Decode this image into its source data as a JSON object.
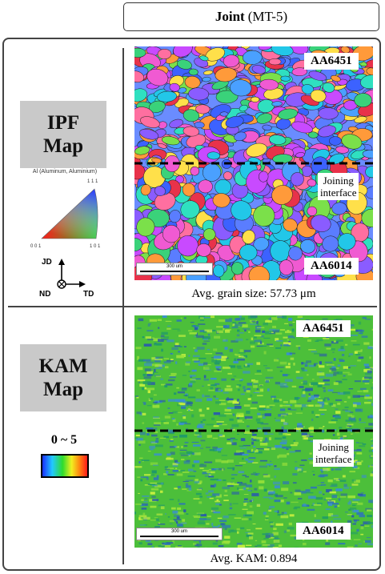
{
  "header": {
    "bold": "Joint",
    "rest": "(MT-5)"
  },
  "ipf": {
    "label_line1": "IPF",
    "label_line2": "Map",
    "legend_title": "Al (Aluminum, Aluminium)",
    "triangle_labels": {
      "top": "1 1 1",
      "left": "0 0 1",
      "right": "1 0 1"
    },
    "axes": {
      "jd": "JD",
      "nd": "ND",
      "td": "TD"
    },
    "top_alloy": "AA6451",
    "bottom_alloy": "AA6014",
    "interface_line1": "Joining",
    "interface_line2": "interface",
    "scale": "300 um",
    "caption": "Avg. grain size: 57.73 μm"
  },
  "kam": {
    "label_line1": "KAM",
    "label_line2": "Map",
    "range": "0 ~ 5",
    "top_alloy": "AA6451",
    "bottom_alloy": "AA6014",
    "interface_line1": "Joining",
    "interface_line2": "interface",
    "scale": "300 um",
    "caption": "Avg. KAM: 0.894"
  },
  "colors": {
    "border": "#444444",
    "label_bg": "#c9c9c9",
    "kam_green": "#4cbf3a",
    "kam_blue": "#2a5fa8"
  }
}
